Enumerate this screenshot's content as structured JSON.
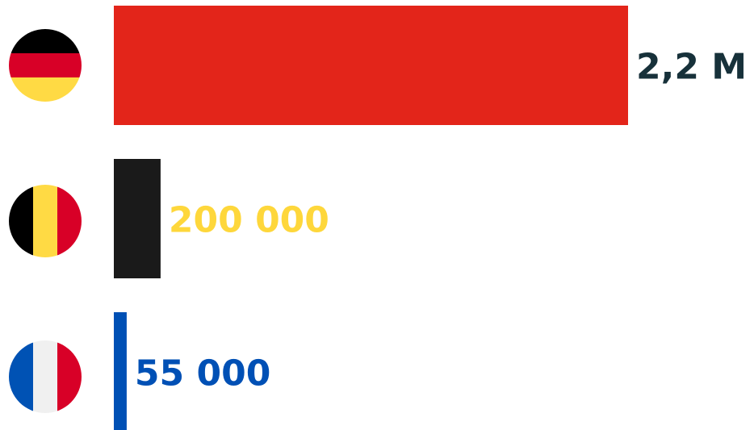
{
  "chart_data": {
    "type": "bar",
    "orientation": "horizontal",
    "categories": [
      null,
      null,
      null
    ],
    "values": [
      2200000,
      200000,
      55000
    ],
    "value_labels": [
      "2,2 M",
      "200 000",
      "55 000"
    ],
    "colors": [
      "#e3251a",
      "#1a1a1a",
      "#0050b5"
    ],
    "label_colors": [
      "#17313a",
      "#fed73b",
      "#0050b5"
    ]
  }
}
